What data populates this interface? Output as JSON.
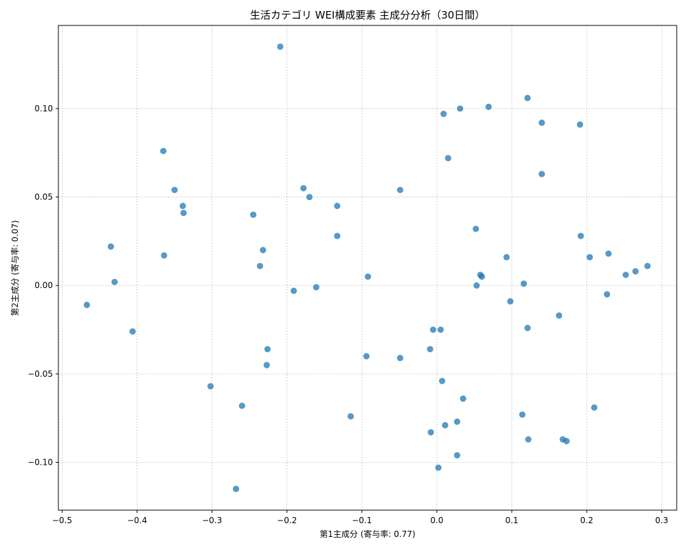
{
  "chart_data": {
    "type": "scatter",
    "title": "生活カテゴリ WEI構成要素 主成分分析（30日間）",
    "xlabel": "第1主成分 (寄与率: 0.77)",
    "ylabel": "第2主成分 (寄与率: 0.07)",
    "xlim": [
      -0.505,
      0.32
    ],
    "ylim": [
      -0.127,
      0.147
    ],
    "xticks": [
      -0.5,
      -0.4,
      -0.3,
      -0.2,
      -0.1,
      0.0,
      0.1,
      0.2,
      0.3
    ],
    "xtick_labels": [
      "−0.5",
      "−0.4",
      "−0.3",
      "−0.2",
      "−0.1",
      "0.0",
      "0.1",
      "0.2",
      "0.3"
    ],
    "yticks": [
      -0.1,
      -0.05,
      0.0,
      0.05,
      0.1
    ],
    "ytick_labels": [
      "−0.10",
      "−0.05",
      "0.00",
      "0.05",
      "0.10"
    ],
    "grid": true,
    "marker_color": "#1f77b4",
    "points": [
      [
        -0.209,
        0.135
      ],
      [
        -0.365,
        0.076
      ],
      [
        -0.35,
        0.054
      ],
      [
        -0.339,
        0.045
      ],
      [
        -0.338,
        0.041
      ],
      [
        -0.435,
        0.022
      ],
      [
        -0.364,
        0.017
      ],
      [
        -0.43,
        0.002
      ],
      [
        -0.467,
        -0.011
      ],
      [
        -0.406,
        -0.026
      ],
      [
        -0.245,
        0.04
      ],
      [
        -0.178,
        0.055
      ],
      [
        -0.17,
        0.05
      ],
      [
        -0.133,
        0.045
      ],
      [
        -0.133,
        0.028
      ],
      [
        -0.232,
        0.02
      ],
      [
        -0.236,
        0.011
      ],
      [
        -0.191,
        -0.003
      ],
      [
        -0.161,
        -0.001
      ],
      [
        -0.092,
        0.005
      ],
      [
        -0.049,
        0.054
      ],
      [
        -0.226,
        -0.036
      ],
      [
        -0.227,
        -0.045
      ],
      [
        -0.302,
        -0.057
      ],
      [
        -0.26,
        -0.068
      ],
      [
        -0.268,
        -0.115
      ],
      [
        -0.115,
        -0.074
      ],
      [
        -0.094,
        -0.04
      ],
      [
        -0.049,
        -0.041
      ],
      [
        0.009,
        0.097
      ],
      [
        0.031,
        0.1
      ],
      [
        0.069,
        0.101
      ],
      [
        0.121,
        0.106
      ],
      [
        0.14,
        0.092
      ],
      [
        0.191,
        0.091
      ],
      [
        0.015,
        0.072
      ],
      [
        0.14,
        0.063
      ],
      [
        0.052,
        0.032
      ],
      [
        0.192,
        0.028
      ],
      [
        0.093,
        0.016
      ],
      [
        0.204,
        0.016
      ],
      [
        0.229,
        0.018
      ],
      [
        0.058,
        0.006
      ],
      [
        0.06,
        0.005
      ],
      [
        0.252,
        0.006
      ],
      [
        0.265,
        0.008
      ],
      [
        0.281,
        0.011
      ],
      [
        0.053,
        0.0
      ],
      [
        0.116,
        0.001
      ],
      [
        0.098,
        -0.009
      ],
      [
        0.227,
        -0.005
      ],
      [
        0.163,
        -0.017
      ],
      [
        0.121,
        -0.024
      ],
      [
        -0.005,
        -0.025
      ],
      [
        0.005,
        -0.025
      ],
      [
        -0.009,
        -0.036
      ],
      [
        0.007,
        -0.054
      ],
      [
        0.035,
        -0.064
      ],
      [
        0.21,
        -0.069
      ],
      [
        0.114,
        -0.073
      ],
      [
        0.027,
        -0.077
      ],
      [
        0.011,
        -0.079
      ],
      [
        -0.008,
        -0.083
      ],
      [
        0.122,
        -0.087
      ],
      [
        0.168,
        -0.087
      ],
      [
        0.173,
        -0.088
      ],
      [
        0.027,
        -0.096
      ],
      [
        0.002,
        -0.103
      ]
    ]
  }
}
